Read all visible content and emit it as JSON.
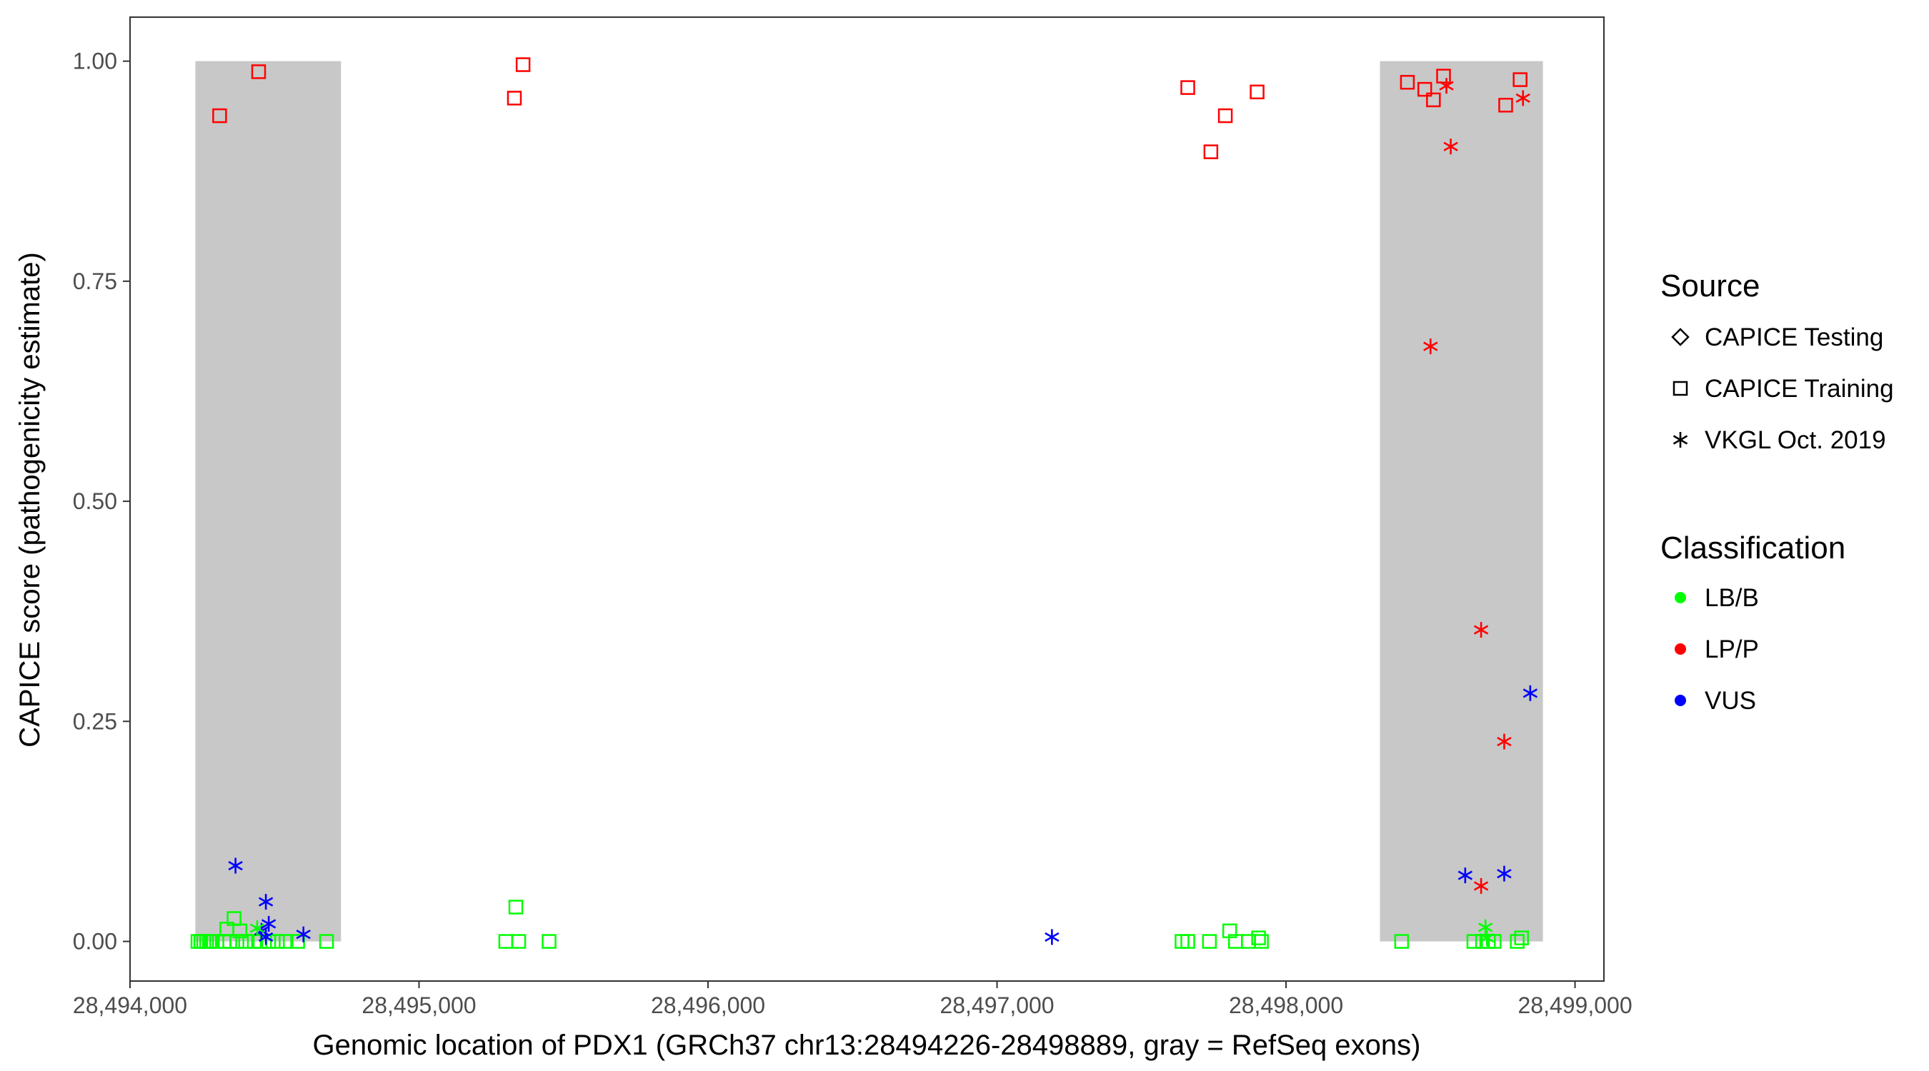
{
  "chart_data": {
    "type": "scatter",
    "title": "",
    "xlabel": "Genomic location of PDX1 (GRCh37 chr13:28494226-28498889, gray = RefSeq exons)",
    "ylabel": "CAPICE score (pathogenicity estimate)",
    "xlim": [
      28494000,
      28499100
    ],
    "ylim": [
      -0.045,
      1.05
    ],
    "x_ticks": [
      28494000,
      28495000,
      28496000,
      28497000,
      28498000,
      28499000
    ],
    "x_tick_labels": [
      "28,494,000",
      "28,495,000",
      "28,496,000",
      "28,497,000",
      "28,498,000",
      "28,499,000"
    ],
    "y_ticks": [
      0,
      0.25,
      0.5,
      0.75,
      1.0
    ],
    "y_tick_labels": [
      "0.00",
      "0.25",
      "0.50",
      "0.75",
      "1.00"
    ],
    "exons": [
      {
        "start": 28494226,
        "end": 28494730
      },
      {
        "start": 28498325,
        "end": 28498889
      }
    ],
    "legend": {
      "position": "right",
      "source_title": "Source",
      "source_items": [
        {
          "label": "CAPICE Testing",
          "shape": "diamond"
        },
        {
          "label": "CAPICE Training",
          "shape": "square"
        },
        {
          "label": "VKGL Oct. 2019",
          "shape": "asterisk"
        }
      ],
      "class_title": "Classification",
      "class_items": [
        {
          "label": "LB/B",
          "color": "#00ff00"
        },
        {
          "label": "LP/P",
          "color": "#ff0000"
        },
        {
          "label": "VUS",
          "color": "#0000ff"
        }
      ]
    },
    "series": [
      {
        "name": "CAPICE Training",
        "shape": "square",
        "points": [
          {
            "x": 28494310,
            "y": 0.938,
            "class": "LP/P"
          },
          {
            "x": 28494445,
            "y": 0.988,
            "class": "LP/P"
          },
          {
            "x": 28495330,
            "y": 0.958,
            "class": "LP/P"
          },
          {
            "x": 28495360,
            "y": 0.996,
            "class": "LP/P"
          },
          {
            "x": 28497660,
            "y": 0.97,
            "class": "LP/P"
          },
          {
            "x": 28497740,
            "y": 0.897,
            "class": "LP/P"
          },
          {
            "x": 28497790,
            "y": 0.938,
            "class": "LP/P"
          },
          {
            "x": 28497900,
            "y": 0.965,
            "class": "LP/P"
          },
          {
            "x": 28498420,
            "y": 0.976,
            "class": "LP/P"
          },
          {
            "x": 28498480,
            "y": 0.968,
            "class": "LP/P"
          },
          {
            "x": 28498510,
            "y": 0.956,
            "class": "LP/P"
          },
          {
            "x": 28498545,
            "y": 0.983,
            "class": "LP/P"
          },
          {
            "x": 28498760,
            "y": 0.95,
            "class": "LP/P"
          },
          {
            "x": 28498810,
            "y": 0.979,
            "class": "LP/P"
          },
          {
            "x": 28494235,
            "y": 0.0,
            "class": "LB/B"
          },
          {
            "x": 28494245,
            "y": 0.0,
            "class": "LB/B"
          },
          {
            "x": 28494255,
            "y": 0.0,
            "class": "LB/B"
          },
          {
            "x": 28494265,
            "y": 0.0,
            "class": "LB/B"
          },
          {
            "x": 28494275,
            "y": 0.0,
            "class": "LB/B"
          },
          {
            "x": 28494285,
            "y": 0.0,
            "class": "LB/B"
          },
          {
            "x": 28494325,
            "y": 0.0,
            "class": "LB/B"
          },
          {
            "x": 28494335,
            "y": 0.014,
            "class": "LB/B"
          },
          {
            "x": 28494345,
            "y": 0.0,
            "class": "LB/B"
          },
          {
            "x": 28494360,
            "y": 0.026,
            "class": "LB/B"
          },
          {
            "x": 28494370,
            "y": 0.0,
            "class": "LB/B"
          },
          {
            "x": 28494380,
            "y": 0.012,
            "class": "LB/B"
          },
          {
            "x": 28494400,
            "y": 0.0,
            "class": "LB/B"
          },
          {
            "x": 28494430,
            "y": 0.0,
            "class": "LB/B"
          },
          {
            "x": 28494450,
            "y": 0.0,
            "class": "LB/B"
          },
          {
            "x": 28494480,
            "y": 0.0,
            "class": "LB/B"
          },
          {
            "x": 28494510,
            "y": 0.0,
            "class": "LB/B"
          },
          {
            "x": 28494540,
            "y": 0.0,
            "class": "LB/B"
          },
          {
            "x": 28494580,
            "y": 0.0,
            "class": "LB/B"
          },
          {
            "x": 28494680,
            "y": 0.0,
            "class": "LB/B"
          },
          {
            "x": 28495300,
            "y": 0.0,
            "class": "LB/B"
          },
          {
            "x": 28495335,
            "y": 0.039,
            "class": "LB/B"
          },
          {
            "x": 28495345,
            "y": 0.0,
            "class": "LB/B"
          },
          {
            "x": 28495450,
            "y": 0.0,
            "class": "LB/B"
          },
          {
            "x": 28497640,
            "y": 0.0,
            "class": "LB/B"
          },
          {
            "x": 28497660,
            "y": 0.0,
            "class": "LB/B"
          },
          {
            "x": 28497735,
            "y": 0.0,
            "class": "LB/B"
          },
          {
            "x": 28497805,
            "y": 0.012,
            "class": "LB/B"
          },
          {
            "x": 28497825,
            "y": 0.0,
            "class": "LB/B"
          },
          {
            "x": 28497870,
            "y": 0.0,
            "class": "LB/B"
          },
          {
            "x": 28497905,
            "y": 0.004,
            "class": "LB/B"
          },
          {
            "x": 28497915,
            "y": 0.0,
            "class": "LB/B"
          },
          {
            "x": 28498400,
            "y": 0.0,
            "class": "LB/B"
          },
          {
            "x": 28498650,
            "y": 0.0,
            "class": "LB/B"
          },
          {
            "x": 28498680,
            "y": 0.0,
            "class": "LB/B"
          },
          {
            "x": 28498700,
            "y": 0.0,
            "class": "LB/B"
          },
          {
            "x": 28498720,
            "y": 0.0,
            "class": "LB/B"
          },
          {
            "x": 28498800,
            "y": 0.0,
            "class": "LB/B"
          },
          {
            "x": 28498815,
            "y": 0.004,
            "class": "LB/B"
          }
        ]
      },
      {
        "name": "VKGL Oct. 2019",
        "shape": "asterisk",
        "points": [
          {
            "x": 28498555,
            "y": 0.972,
            "class": "LP/P"
          },
          {
            "x": 28498570,
            "y": 0.903,
            "class": "LP/P"
          },
          {
            "x": 28498820,
            "y": 0.958,
            "class": "LP/P"
          },
          {
            "x": 28498500,
            "y": 0.676,
            "class": "LP/P"
          },
          {
            "x": 28498675,
            "y": 0.354,
            "class": "LP/P"
          },
          {
            "x": 28498755,
            "y": 0.227,
            "class": "LP/P"
          },
          {
            "x": 28498675,
            "y": 0.063,
            "class": "LP/P"
          },
          {
            "x": 28494365,
            "y": 0.086,
            "class": "VUS"
          },
          {
            "x": 28494470,
            "y": 0.045,
            "class": "VUS"
          },
          {
            "x": 28494480,
            "y": 0.02,
            "class": "VUS"
          },
          {
            "x": 28494455,
            "y": 0.012,
            "class": "VUS"
          },
          {
            "x": 28494470,
            "y": 0.005,
            "class": "VUS"
          },
          {
            "x": 28494600,
            "y": 0.008,
            "class": "VUS"
          },
          {
            "x": 28497190,
            "y": 0.005,
            "class": "VUS"
          },
          {
            "x": 28498620,
            "y": 0.075,
            "class": "VUS"
          },
          {
            "x": 28498755,
            "y": 0.077,
            "class": "VUS"
          },
          {
            "x": 28498845,
            "y": 0.282,
            "class": "VUS"
          },
          {
            "x": 28494440,
            "y": 0.015,
            "class": "LB/B"
          },
          {
            "x": 28498690,
            "y": 0.016,
            "class": "LB/B"
          },
          {
            "x": 28498695,
            "y": 0.004,
            "class": "LB/B"
          }
        ]
      }
    ]
  }
}
